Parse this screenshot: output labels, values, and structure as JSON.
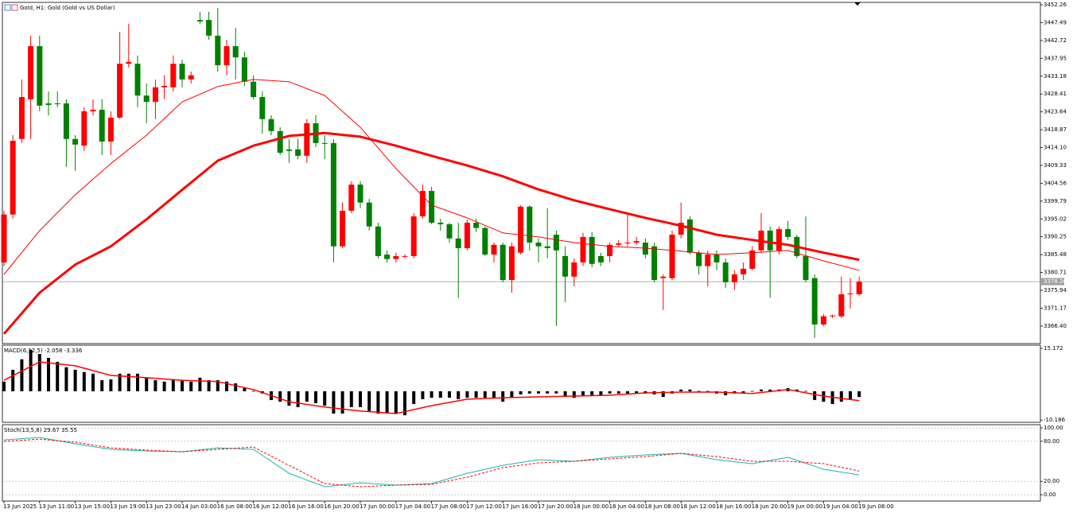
{
  "chart_data": [
    {
      "type": "candlestick",
      "title": "Gold, H1:  Gold (Gold vs US Dollar)",
      "categories": [
        "13 Jun 2025",
        null,
        null,
        null,
        "13 Jun 11:00",
        null,
        null,
        null,
        "13 Jun 15:00",
        null,
        null,
        null,
        "13 Jun 19:00",
        null,
        null,
        null,
        "13 Jun 23:00",
        null,
        null,
        null,
        "14 Jun 03:00",
        null,
        null,
        null,
        "16 Jun 08:00",
        null,
        null,
        null,
        "16 Jun 12:00",
        null,
        null,
        null,
        "16 Jun 16:00",
        null,
        null,
        null,
        "16 Jun 20:00",
        null,
        null,
        null,
        "17 Jun 00:00",
        null,
        null,
        null,
        "17 Jun 04:00",
        null,
        null,
        null,
        "17 Jun 08:00",
        null,
        null,
        null,
        "17 Jun 12:00",
        null,
        null,
        null,
        "17 Jun 16:00",
        null,
        null,
        null,
        "17 Jun 20:00",
        null,
        null,
        null,
        "18 Jun 00:00",
        null,
        null,
        null,
        "18 Jun 04:00",
        null,
        null,
        null,
        "18 Jun 08:00",
        null,
        null,
        null,
        "18 Jun 12:00",
        null,
        null,
        null,
        "18 Jun 16:00",
        null,
        null,
        null,
        "18 Jun 20:00",
        null,
        null,
        null,
        "19 Jun 00:00",
        null,
        null,
        null,
        "19 Jun 04:00",
        null,
        null,
        null,
        "19 Jun 08:00"
      ],
      "open": [
        3383.4,
        3396.2,
        3416.4,
        3427.0,
        3441.2,
        3425.9,
        3425.9,
        3425.9,
        3416.4,
        3414.6,
        3423.8,
        3424.2,
        3415.7,
        3422.1,
        3436.5,
        3436.5,
        3428.0,
        3426.3,
        3430.2,
        3430.2,
        3436.5,
        3432.3,
        3448.2,
        3448.2,
        3444.0,
        3436.1,
        3441.2,
        3438.2,
        3431.7,
        3427.6,
        3421.7,
        3418.5,
        3413.6,
        3413.6,
        3411.9,
        3420.6,
        3415.3,
        3415.3,
        3387.7,
        3397.2,
        3404.2,
        3399.4,
        3393.0,
        3385.5,
        3384.3,
        3384.9,
        3385.1,
        3395.7,
        3402.5,
        3394.0,
        3393.6,
        3389.8,
        3387.2,
        3394.0,
        3392.6,
        3385.5,
        3388.1,
        3378.7,
        3386.0,
        3398.3,
        3388.7,
        3387.7,
        3390.8,
        3385.1,
        3379.6,
        3383.4,
        3390.2,
        3385.1,
        3385.1,
        3388.1,
        3388.5,
        3388.7,
        3388.7,
        3387.7,
        3379.2,
        3379.2,
        3390.8,
        3394.9,
        3386.0,
        3382.4,
        3385.5,
        3383.4,
        3378.1,
        3380.2,
        3381.7,
        3386.6,
        3391.9,
        3386.6,
        3392.3,
        3390.2,
        3385.1,
        3379.2,
        3366.8,
        3369.0,
        3369.0,
        3374.9,
        3374.9
      ],
      "high": [
        3397.2,
        3417.4,
        3432.3,
        3444.0,
        3444.0,
        3429.1,
        3429.1,
        3427.0,
        3417.4,
        3424.9,
        3427.0,
        3427.0,
        3423.8,
        3445.0,
        3447.2,
        3438.7,
        3431.2,
        3432.3,
        3433.4,
        3438.7,
        3437.6,
        3434.4,
        3450.4,
        3450.4,
        3451.4,
        3442.9,
        3446.1,
        3439.7,
        3433.4,
        3429.1,
        3422.7,
        3419.5,
        3416.4,
        3416.4,
        3421.7,
        3422.7,
        3417.4,
        3416.4,
        3399.4,
        3405.1,
        3405.1,
        3400.4,
        3394.0,
        3386.6,
        3386.0,
        3385.5,
        3396.6,
        3404.2,
        3403.6,
        3395.1,
        3394.0,
        3394.0,
        3394.9,
        3395.1,
        3393.0,
        3388.7,
        3388.7,
        3388.7,
        3398.7,
        3398.7,
        3389.8,
        3397.9,
        3391.9,
        3387.7,
        3384.5,
        3391.3,
        3391.5,
        3386.0,
        3388.7,
        3389.4,
        3396.2,
        3390.2,
        3389.8,
        3388.7,
        3380.2,
        3391.9,
        3399.4,
        3395.7,
        3386.6,
        3386.6,
        3386.6,
        3384.5,
        3381.3,
        3383.4,
        3387.7,
        3396.6,
        3393.0,
        3393.0,
        3394.5,
        3390.8,
        3395.7,
        3380.2,
        3369.6,
        3369.4,
        3379.6,
        3379.2,
        3379.6
      ],
      "low": [
        3382.4,
        3395.1,
        3415.3,
        3416.4,
        3423.8,
        3422.7,
        3424.9,
        3408.9,
        3407.9,
        3413.2,
        3422.7,
        3412.1,
        3412.1,
        3421.7,
        3435.5,
        3424.9,
        3420.6,
        3421.7,
        3427.0,
        3429.1,
        3430.2,
        3431.2,
        3447.2,
        3442.9,
        3434.4,
        3433.4,
        3432.3,
        3430.6,
        3427.0,
        3417.8,
        3417.4,
        3412.1,
        3410.0,
        3411.0,
        3410.0,
        3414.2,
        3411.0,
        3383.4,
        3387.2,
        3396.6,
        3397.9,
        3391.9,
        3384.5,
        3383.4,
        3383.4,
        3384.5,
        3384.5,
        3395.1,
        3393.6,
        3391.9,
        3388.7,
        3373.9,
        3386.6,
        3391.5,
        3385.1,
        3383.4,
        3378.1,
        3375.3,
        3385.5,
        3386.6,
        3383.4,
        3384.5,
        3366.4,
        3372.8,
        3377.0,
        3382.4,
        3382.1,
        3382.4,
        3383.4,
        3387.7,
        3387.7,
        3388.1,
        3384.5,
        3378.1,
        3370.7,
        3378.7,
        3389.8,
        3385.5,
        3380.2,
        3377.0,
        3381.3,
        3376.6,
        3376.0,
        3378.7,
        3381.3,
        3386.0,
        3373.9,
        3385.5,
        3389.4,
        3384.5,
        3378.1,
        3363.2,
        3366.4,
        3368.5,
        3368.5,
        3371.1,
        3374.5
      ],
      "close": [
        3396.2,
        3415.9,
        3427.6,
        3441.2,
        3425.3,
        3425.5,
        3425.7,
        3416.4,
        3414.9,
        3423.8,
        3424.2,
        3415.7,
        3422.1,
        3436.5,
        3437.0,
        3428.0,
        3426.3,
        3430.2,
        3430.6,
        3436.5,
        3432.3,
        3433.4,
        3447.8,
        3444.0,
        3436.1,
        3441.2,
        3438.2,
        3431.7,
        3427.6,
        3421.7,
        3418.5,
        3412.7,
        3413.2,
        3411.9,
        3420.6,
        3415.3,
        3415.1,
        3387.7,
        3397.2,
        3404.2,
        3399.4,
        3393.0,
        3385.1,
        3384.3,
        3385.1,
        3385.1,
        3395.7,
        3402.5,
        3394.0,
        3393.6,
        3389.8,
        3387.2,
        3394.0,
        3392.6,
        3385.5,
        3388.1,
        3378.7,
        3387.7,
        3398.3,
        3388.7,
        3387.7,
        3387.2,
        3386.6,
        3379.6,
        3383.4,
        3390.2,
        3383.0,
        3383.4,
        3388.1,
        3388.5,
        3388.7,
        3389.1,
        3385.5,
        3378.7,
        3379.6,
        3390.8,
        3394.0,
        3386.0,
        3382.4,
        3385.5,
        3383.4,
        3378.1,
        3380.2,
        3381.7,
        3386.6,
        3391.9,
        3386.6,
        3392.3,
        3390.2,
        3385.1,
        3378.7,
        3366.8,
        3369.0,
        3369.2,
        3374.9,
        3375.1,
        3378.26
      ],
      "up_color": "#ff0000",
      "down_color": "#008000",
      "series": [
        {
          "color": "#ff0000",
          "width": 3,
          "x": [
            "13 Jun 2025",
            "13 Jun 11:00",
            "13 Jun 15:00",
            "13 Jun 19:00",
            "13 Jun 23:00",
            "14 Jun 03:00",
            "16 Jun 08:00",
            "16 Jun 12:00",
            "16 Jun 16:00",
            "16 Jun 20:00",
            "17 Jun 00:00",
            "17 Jun 04:00",
            "17 Jun 08:00",
            "17 Jun 12:00",
            "17 Jun 16:00",
            "17 Jun 20:00",
            "18 Jun 00:00",
            "18 Jun 04:00",
            "18 Jun 08:00",
            "18 Jun 12:00",
            "18 Jun 16:00",
            "18 Jun 20:00",
            "19 Jun 00:00",
            "19 Jun 04:00",
            "19 Jun 08:00"
          ],
          "values": [
            3364.3,
            3375.3,
            3382.8,
            3387.7,
            3394.9,
            3402.8,
            3410.6,
            3414.6,
            3417.2,
            3418.0,
            3417.0,
            3414.6,
            3411.9,
            3409.3,
            3406.4,
            3402.9,
            3400.0,
            3397.6,
            3395.3,
            3393.2,
            3390.8,
            3389.4,
            3388.1,
            3386.0,
            3384.1
          ]
        },
        {
          "color": "#ff0000",
          "width": 1,
          "x": [
            "13 Jun 2025",
            "13 Jun 11:00",
            "13 Jun 15:00",
            "13 Jun 19:00",
            "13 Jun 23:00",
            "14 Jun 03:00",
            "16 Jun 08:00",
            "16 Jun 12:00",
            "16 Jun 16:00",
            "16 Jun 20:00",
            "17 Jun 00:00",
            "17 Jun 04:00",
            "17 Jun 08:00",
            "17 Jun 12:00",
            "17 Jun 16:00",
            "17 Jun 20:00",
            "18 Jun 00:00",
            "18 Jun 04:00",
            "18 Jun 08:00",
            "18 Jun 12:00",
            "18 Jun 16:00",
            "18 Jun 20:00",
            "19 Jun 00:00",
            "19 Jun 04:00",
            "19 Jun 08:00"
          ],
          "values": [
            3380.2,
            3391.9,
            3401.5,
            3409.8,
            3417.4,
            3426.3,
            3430.4,
            3432.3,
            3431.7,
            3428.0,
            3419.5,
            3408.5,
            3398.7,
            3395.3,
            3391.3,
            3390.2,
            3388.7,
            3387.7,
            3387.2,
            3386.4,
            3385.5,
            3386.0,
            3386.6,
            3383.8,
            3381.3
          ]
        }
      ],
      "price_line": 3378.26,
      "ylim": [
        3361.7,
        3452.9
      ],
      "yticks": [
        3452.26,
        3447.49,
        3442.72,
        3437.95,
        3433.18,
        3428.41,
        3423.64,
        3418.87,
        {
          "value": 3414.1,
          "label": "3414.10"
        },
        3409.33,
        3404.56,
        3399.79,
        3395.02,
        3390.25,
        3385.48,
        3380.71,
        3375.94,
        3371.17,
        {
          "value": 3366.4,
          "label": "3366.40"
        }
      ]
    },
    {
      "type": "histogram",
      "title": "MACD(6,12,5) -2.058 -3.336",
      "color": "#000000",
      "values": [
        3.4,
        7.6,
        11.3,
        14.7,
        13.2,
        11.8,
        10.4,
        8.5,
        7.6,
        6.8,
        6.2,
        3.9,
        4.2,
        6.2,
        6.2,
        6.2,
        4.8,
        3.9,
        3.4,
        3.9,
        3.9,
        3.4,
        4.8,
        3.9,
        3.9,
        3.4,
        2.8,
        1.1,
        0.1,
        -0.8,
        -3.1,
        -3.7,
        -5.1,
        -5.6,
        -3.7,
        -4.2,
        -5.1,
        -7.9,
        -7.9,
        -5.6,
        -5.6,
        -7.0,
        -7.9,
        -7.9,
        -7.9,
        -8.5,
        -4.5,
        -2.8,
        -2.3,
        -2.3,
        -2.3,
        -2.8,
        -2.3,
        -2.3,
        -2.3,
        -2.3,
        -3.7,
        -2.3,
        -1.1,
        -0.8,
        -0.8,
        -0.8,
        -0.8,
        -2.0,
        -2.3,
        -1.4,
        -1.4,
        -1.4,
        -0.8,
        -0.8,
        -0.8,
        -0.8,
        -0.8,
        -1.1,
        -2.0,
        -0.8,
        0.6,
        0.6,
        0.1,
        0.1,
        -0.8,
        -1.4,
        -0.8,
        -0.8,
        0.1,
        0.6,
        0.6,
        0.6,
        1.1,
        0.6,
        0.1,
        -3.1,
        -3.7,
        -4.5,
        -3.7,
        -2.8,
        -2.058
      ],
      "series": [
        {
          "color": "#ff0000",
          "width": 1.5,
          "x": [
            "13 Jun 2025",
            "13 Jun 11:00",
            "13 Jun 15:00",
            "13 Jun 19:00",
            "13 Jun 23:00",
            "14 Jun 03:00",
            "16 Jun 08:00",
            "16 Jun 12:00",
            "16 Jun 16:00",
            "16 Jun 20:00",
            "17 Jun 00:00",
            "17 Jun 04:00",
            "17 Jun 08:00",
            "17 Jun 12:00",
            "17 Jun 16:00",
            "17 Jun 20:00",
            "18 Jun 00:00",
            "18 Jun 04:00",
            "18 Jun 08:00",
            "18 Jun 12:00",
            "18 Jun 16:00",
            "18 Jun 20:00",
            "19 Jun 00:00",
            "19 Jun 04:00",
            "19 Jun 08:00"
          ],
          "values": [
            3.9,
            10.4,
            9.0,
            5.6,
            4.8,
            3.9,
            3.4,
            0.6,
            -3.7,
            -5.6,
            -7.0,
            -7.9,
            -5.1,
            -2.8,
            -2.3,
            -2.0,
            -1.7,
            -1.4,
            -0.6,
            -0.3,
            -0.3,
            -0.8,
            0.6,
            -1.7,
            -3.336
          ]
        }
      ],
      "ylim": [
        -11.0,
        16.3
      ],
      "yticks": [
        15.172,
        -10.186
      ]
    },
    {
      "type": "line",
      "title": "Stoch(13,5,8) 29.67 35.55",
      "series": [
        {
          "color": "#20b2aa",
          "width": 1,
          "x": [
            "13 Jun 2025",
            "13 Jun 11:00",
            "13 Jun 15:00",
            "13 Jun 19:00",
            "13 Jun 23:00",
            "14 Jun 03:00",
            "16 Jun 08:00",
            "16 Jun 12:00",
            "16 Jun 16:00",
            "16 Jun 20:00",
            "17 Jun 00:00",
            "17 Jun 04:00",
            "17 Jun 08:00",
            "17 Jun 12:00",
            "17 Jun 16:00",
            "17 Jun 20:00",
            "18 Jun 00:00",
            "18 Jun 04:00",
            "18 Jun 08:00",
            "18 Jun 12:00",
            "18 Jun 16:00",
            "18 Jun 20:00",
            "19 Jun 00:00",
            "19 Jun 04:00",
            "19 Jun 08:00"
          ],
          "values": [
            82.1,
            85.7,
            76.2,
            67.9,
            65.5,
            64.3,
            70.2,
            67.9,
            32.1,
            11.9,
            17.9,
            14.3,
            16.7,
            32.1,
            44.0,
            52.4,
            50.0,
            56.0,
            59.5,
            61.9,
            52.4,
            46.4,
            56.0,
            38.1,
            29.67
          ]
        },
        {
          "color": "#ff0000",
          "width": 1,
          "dash": true,
          "x": [
            "13 Jun 2025",
            "13 Jun 11:00",
            "13 Jun 15:00",
            "13 Jun 19:00",
            "13 Jun 23:00",
            "14 Jun 03:00",
            "16 Jun 08:00",
            "16 Jun 12:00",
            "16 Jun 16:00",
            "16 Jun 20:00",
            "17 Jun 00:00",
            "17 Jun 04:00",
            "17 Jun 08:00",
            "17 Jun 12:00",
            "17 Jun 16:00",
            "17 Jun 20:00",
            "18 Jun 00:00",
            "18 Jun 04:00",
            "18 Jun 08:00",
            "18 Jun 12:00",
            "18 Jun 16:00",
            "18 Jun 20:00",
            "19 Jun 00:00",
            "19 Jun 04:00",
            "19 Jun 08:00"
          ],
          "values": [
            79.8,
            83.3,
            78.6,
            70.2,
            66.7,
            64.3,
            67.9,
            71.4,
            44.0,
            16.7,
            11.9,
            14.3,
            15.5,
            26.2,
            40.5,
            47.6,
            50.0,
            53.6,
            57.1,
            61.9,
            57.1,
            50.0,
            50.0,
            46.4,
            35.55
          ]
        }
      ],
      "ylim": [
        -9.5,
        104.8
      ],
      "yticks": [
        {
          "value": 100,
          "label": "100.00"
        },
        {
          "value": 80,
          "label": "80.00"
        },
        {
          "value": 20,
          "label": "20.00"
        },
        {
          "value": 0,
          "label": "0.00"
        }
      ],
      "grid": true
    }
  ]
}
